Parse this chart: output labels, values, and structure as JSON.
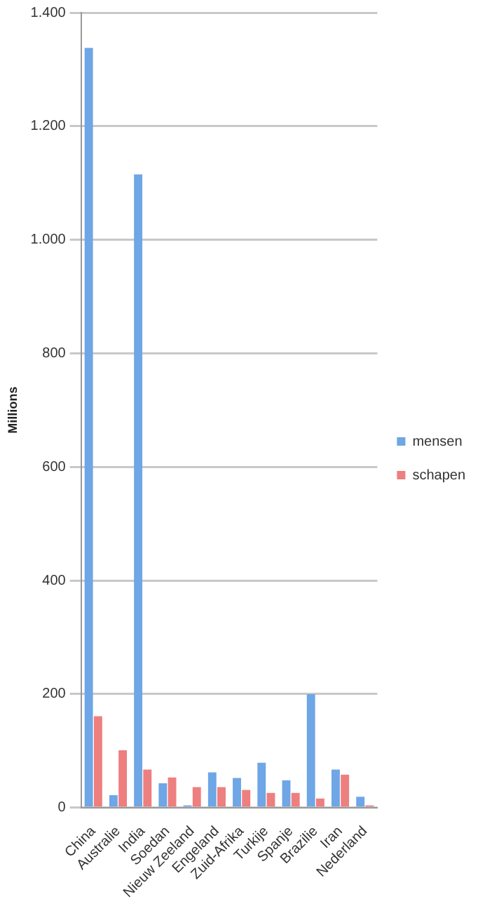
{
  "chart_data": {
    "type": "bar",
    "ylabel": "Millions",
    "categories": [
      "China",
      "Australie",
      "India",
      "Soedan",
      "Nieuw Zeeland",
      "Engeland",
      "Zuid-Afrika",
      "Turkije",
      "Spanje",
      "Brazilie",
      "Iran",
      "Nederland"
    ],
    "series": [
      {
        "name": "mensen",
        "color": "#6ea6e6",
        "values": [
          1338,
          22,
          1115,
          43,
          4,
          62,
          52,
          79,
          48,
          200,
          67,
          19
        ]
      },
      {
        "name": "schapen",
        "color": "#ee7f7f",
        "values": [
          161,
          101,
          67,
          53,
          36,
          36,
          31,
          26,
          26,
          16,
          58,
          4
        ]
      }
    ],
    "ylim": [
      0,
      1400
    ],
    "yticks": [
      0,
      200,
      400,
      600,
      800,
      {
        "value": 1000,
        "label": "1.000"
      },
      {
        "value": 1200,
        "label": "1.200"
      },
      {
        "value": 1400,
        "label": "1.400"
      }
    ],
    "grid": "y",
    "legend": "right"
  }
}
